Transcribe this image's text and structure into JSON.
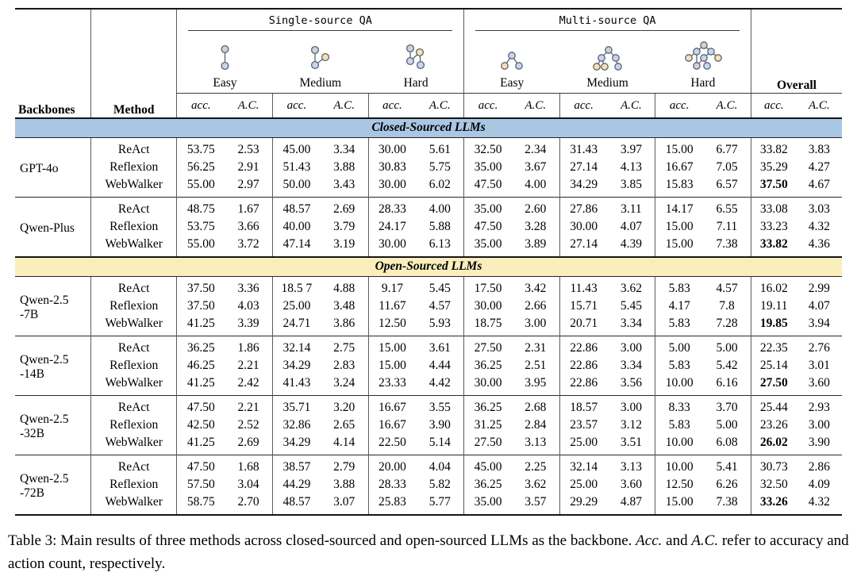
{
  "header": {
    "backbones": "Backbones",
    "method": "Method",
    "single_source": "Single-source QA",
    "multi_source": "Multi-source QA",
    "overall": "Overall",
    "difficulties": [
      "Easy",
      "Medium",
      "Hard"
    ],
    "acc": "acc.",
    "ac": "A.C."
  },
  "icons": {
    "single_easy": "single-source-easy-graph-icon",
    "single_medium": "single-source-medium-graph-icon",
    "single_hard": "single-source-hard-graph-icon",
    "multi_easy": "multi-source-easy-tree-icon",
    "multi_medium": "multi-source-medium-tree-icon",
    "multi_hard": "multi-source-hard-tree-icon"
  },
  "colors": {
    "closed_band": "#a9c6e3",
    "open_band": "#faeebd",
    "rule": "#141414"
  },
  "table": {
    "sections": [
      {
        "label": "Closed-Sourced LLMs",
        "color": "#a9c6e3",
        "groups": [
          {
            "backbone": "GPT-4o",
            "rows": [
              {
                "method": "ReAct",
                "values": [
                  "53.75",
                  "2.53",
                  "45.00",
                  "3.34",
                  "30.00",
                  "5.61",
                  "32.50",
                  "2.34",
                  "31.43",
                  "3.97",
                  "15.00",
                  "6.77",
                  "33.82",
                  "3.83"
                ],
                "bold": []
              },
              {
                "method": "Reflexion",
                "values": [
                  "56.25",
                  "2.91",
                  "51.43",
                  "3.88",
                  "30.83",
                  "5.75",
                  "35.00",
                  "3.67",
                  "27.14",
                  "4.13",
                  "16.67",
                  "7.05",
                  "35.29",
                  "4.27"
                ],
                "bold": []
              },
              {
                "method": "WebWalker",
                "values": [
                  "55.00",
                  "2.97",
                  "50.00",
                  "3.43",
                  "30.00",
                  "6.02",
                  "47.50",
                  "4.00",
                  "34.29",
                  "3.85",
                  "15.83",
                  "6.57",
                  "37.50",
                  "4.67"
                ],
                "bold": [
                  12
                ]
              }
            ]
          },
          {
            "backbone": "Qwen-Plus",
            "rows": [
              {
                "method": "ReAct",
                "values": [
                  "48.75",
                  "1.67",
                  "48.57",
                  "2.69",
                  "28.33",
                  "4.00",
                  "35.00",
                  "2.60",
                  "27.86",
                  "3.11",
                  "14.17",
                  "6.55",
                  "33.08",
                  "3.03"
                ],
                "bold": []
              },
              {
                "method": "Reflexion",
                "values": [
                  "53.75",
                  "3.66",
                  "40.00",
                  "3.79",
                  "24.17",
                  "5.88",
                  "47.50",
                  "3.28",
                  "30.00",
                  "4.07",
                  "15.00",
                  "7.11",
                  "33.23",
                  "4.32"
                ],
                "bold": []
              },
              {
                "method": "WebWalker",
                "values": [
                  "55.00",
                  "3.72",
                  "47.14",
                  "3.19",
                  "30.00",
                  "6.13",
                  "35.00",
                  "3.89",
                  "27.14",
                  "4.39",
                  "15.00",
                  "7.38",
                  "33.82",
                  "4.36"
                ],
                "bold": [
                  12
                ]
              }
            ]
          }
        ]
      },
      {
        "label": "Open-Sourced LLMs",
        "color": "#faeebd",
        "groups": [
          {
            "backbone": "Qwen-2.5\n-7B",
            "rows": [
              {
                "method": "ReAct",
                "values": [
                  "37.50",
                  "3.36",
                  "18.5 7",
                  "4.88",
                  "9.17",
                  "5.45",
                  "17.50",
                  "3.42",
                  "11.43",
                  "3.62",
                  "5.83",
                  "4.57",
                  "16.02",
                  "2.99"
                ],
                "bold": []
              },
              {
                "method": "Reflexion",
                "values": [
                  "37.50",
                  "4.03",
                  "25.00",
                  "3.48",
                  "11.67",
                  "4.57",
                  "30.00",
                  "2.66",
                  "15.71",
                  "5.45",
                  "4.17",
                  "7.8",
                  "19.11",
                  "4.07"
                ],
                "bold": []
              },
              {
                "method": "WebWalker",
                "values": [
                  "41.25",
                  "3.39",
                  "24.71",
                  "3.86",
                  "12.50",
                  "5.93",
                  "18.75",
                  "3.00",
                  "20.71",
                  "3.34",
                  "5.83",
                  "7.28",
                  "19.85",
                  "3.94"
                ],
                "bold": [
                  12
                ]
              }
            ]
          },
          {
            "backbone": "Qwen-2.5\n-14B",
            "rows": [
              {
                "method": "ReAct",
                "values": [
                  "36.25",
                  "1.86",
                  "32.14",
                  "2.75",
                  "15.00",
                  "3.61",
                  "27.50",
                  "2.31",
                  "22.86",
                  "3.00",
                  "5.00",
                  "5.00",
                  "22.35",
                  "2.76"
                ],
                "bold": []
              },
              {
                "method": "Reflexion",
                "values": [
                  "46.25",
                  "2.21",
                  "34.29",
                  "2.83",
                  "15.00",
                  "4.44",
                  "36.25",
                  "2.51",
                  "22.86",
                  "3.34",
                  "5.83",
                  "5.42",
                  "25.14",
                  "3.01"
                ],
                "bold": []
              },
              {
                "method": "WebWalker",
                "values": [
                  "41.25",
                  "2.42",
                  "41.43",
                  "3.24",
                  "23.33",
                  "4.42",
                  "30.00",
                  "3.95",
                  "22.86",
                  "3.56",
                  "10.00",
                  "6.16",
                  "27.50",
                  "3.60"
                ],
                "bold": [
                  12
                ]
              }
            ]
          },
          {
            "backbone": "Qwen-2.5\n-32B",
            "rows": [
              {
                "method": "ReAct",
                "values": [
                  "47.50",
                  "2.21",
                  "35.71",
                  "3.20",
                  "16.67",
                  "3.55",
                  "36.25",
                  "2.68",
                  "18.57",
                  "3.00",
                  "8.33",
                  "3.70",
                  "25.44",
                  "2.93"
                ],
                "bold": []
              },
              {
                "method": "Reflexion",
                "values": [
                  "42.50",
                  "2.52",
                  "32.86",
                  "2.65",
                  "16.67",
                  "3.90",
                  "31.25",
                  "2.84",
                  "23.57",
                  "3.12",
                  "5.83",
                  "5.00",
                  "23.26",
                  "3.00"
                ],
                "bold": []
              },
              {
                "method": "WebWalker",
                "values": [
                  "41.25",
                  "2.69",
                  "34.29",
                  "4.14",
                  "22.50",
                  "5.14",
                  "27.50",
                  "3.13",
                  "25.00",
                  "3.51",
                  "10.00",
                  "6.08",
                  "26.02",
                  "3.90"
                ],
                "bold": [
                  12
                ]
              }
            ]
          },
          {
            "backbone": "Qwen-2.5\n-72B",
            "rows": [
              {
                "method": "ReAct",
                "values": [
                  "47.50",
                  "1.68",
                  "38.57",
                  "2.79",
                  "20.00",
                  "4.04",
                  "45.00",
                  "2.25",
                  "32.14",
                  "3.13",
                  "10.00",
                  "5.41",
                  "30.73",
                  "2.86"
                ],
                "bold": []
              },
              {
                "method": "Reflexion",
                "values": [
                  "57.50",
                  "3.04",
                  "44.29",
                  "3.88",
                  "28.33",
                  "5.82",
                  "36.25",
                  "3.62",
                  "25.00",
                  "3.60",
                  "12.50",
                  "6.26",
                  "32.50",
                  "4.09"
                ],
                "bold": []
              },
              {
                "method": "WebWalker",
                "values": [
                  "58.75",
                  "2.70",
                  "48.57",
                  "3.07",
                  "25.83",
                  "5.77",
                  "35.00",
                  "3.57",
                  "29.29",
                  "4.87",
                  "15.00",
                  "7.38",
                  "33.26",
                  "4.32"
                ],
                "bold": [
                  12
                ]
              }
            ]
          }
        ]
      }
    ]
  },
  "caption": {
    "p1": "Table 3: Main results of three methods across closed-sourced and open-sourced LLMs as the backbone. ",
    "i1": "Acc.",
    "p2": " and ",
    "i2": "A.C.",
    "p3": " refer to accuracy and action count, respectively."
  }
}
